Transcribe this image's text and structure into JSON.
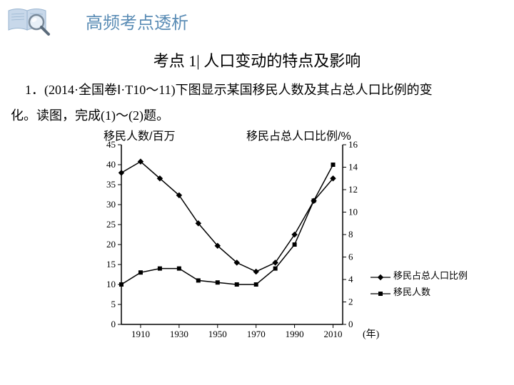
{
  "header": {
    "title": "高频考点透析",
    "book_color": "#c8d8ea",
    "book_line_color": "#9ab5d0",
    "mag_rim_color": "#7a8a9a",
    "mag_handle_color": "#5a6a7a",
    "title_color": "#5a8cb5"
  },
  "topic": {
    "title": "考点 1|  人口变动的特点及影响",
    "body_line1": "1．(2014·全国卷Ⅰ·T10～11)下图显示某国移民人数及其占总人口比例的变",
    "body_line2": "化。读图，完成(1)～(2)题。"
  },
  "chart": {
    "type": "dual-axis-line",
    "left_axis_label": "移民人数/百万",
    "right_axis_label": "移民占总人口比例/%",
    "x_axis_label": "(年)",
    "left_ylim": [
      0,
      45
    ],
    "left_ytick_step": 5,
    "right_ylim": [
      0,
      16
    ],
    "right_ytick_step": 2,
    "x_ticks": [
      1910,
      1930,
      1950,
      1970,
      1990,
      2010
    ],
    "background_color": "#ffffff",
    "axis_color": "#000000",
    "tick_fontsize": 13,
    "series": {
      "percent": {
        "label": "移民占总人口比例",
        "marker": "diamond",
        "marker_size": 6,
        "line_color": "#000000",
        "line_width": 1.5,
        "x": [
          1900,
          1910,
          1920,
          1930,
          1940,
          1950,
          1960,
          1970,
          1980,
          1990,
          2000,
          2010
        ],
        "y": [
          13.5,
          14.5,
          13,
          11.5,
          9,
          7,
          5.5,
          4.7,
          5.5,
          8,
          11,
          13
        ]
      },
      "count": {
        "label": "移民人数",
        "marker": "square",
        "marker_size": 6,
        "line_color": "#000000",
        "line_width": 1.5,
        "x": [
          1900,
          1910,
          1920,
          1930,
          1940,
          1950,
          1960,
          1970,
          1980,
          1990,
          2000,
          2010
        ],
        "y": [
          10,
          13,
          14,
          14,
          11,
          10.5,
          10,
          10,
          14,
          20,
          31,
          40
        ]
      }
    }
  },
  "legend_item1": "移民占总人口比例",
  "legend_item2": "移民人数"
}
